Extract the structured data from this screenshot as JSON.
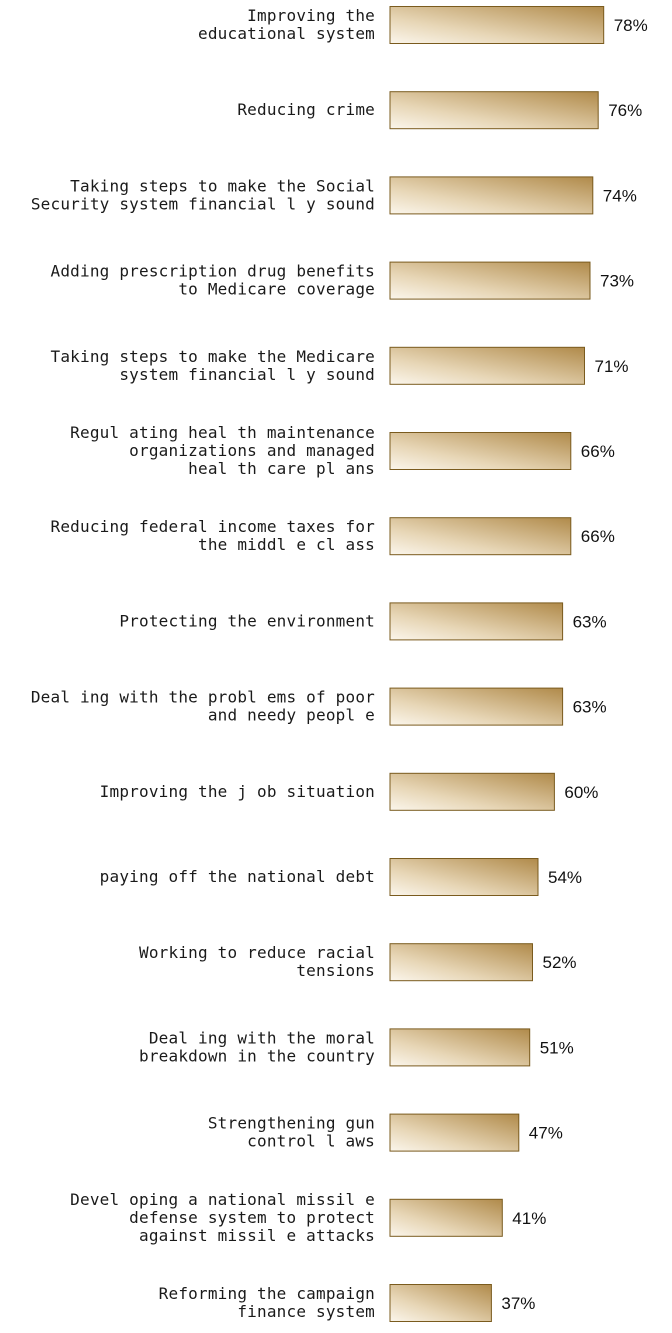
{
  "chart_data": {
    "type": "bar",
    "orientation": "horizontal",
    "categories": [
      [
        "Improving the",
        "educational system"
      ],
      [
        "Reducing crime"
      ],
      [
        "Taking steps to make the Social",
        "Security system financial l y sound"
      ],
      [
        "Adding prescription drug benefits",
        "to Medicare coverage"
      ],
      [
        "Taking steps to make the Medicare",
        "system financial l y sound"
      ],
      [
        "Regul ating heal th maintenance",
        "organizations and managed",
        "heal th care pl ans"
      ],
      [
        "Reducing federal income taxes for",
        "the middl e cl ass"
      ],
      [
        "Protecting the environment"
      ],
      [
        "Deal ing with the probl ems of poor",
        "and needy peopl e"
      ],
      [
        "Improving the j ob situation"
      ],
      [
        "paying off the national debt"
      ],
      [
        "Working to reduce racial",
        "tensions"
      ],
      [
        "Deal ing with the moral",
        "breakdown in the country"
      ],
      [
        "Strengthening gun",
        "control l aws"
      ],
      [
        "Devel oping a national missil e",
        "defense system to protect",
        "against missil e attacks"
      ],
      [
        "Reforming the campaign",
        "finance system"
      ]
    ],
    "values": [
      78,
      76,
      74,
      73,
      71,
      66,
      66,
      63,
      63,
      60,
      54,
      52,
      51,
      47,
      41,
      37
    ],
    "value_labels": [
      "78%",
      "76%",
      "74%",
      "73%",
      "71%",
      "66%",
      "66%",
      "63%",
      "63%",
      "60%",
      "54%",
      "52%",
      "51%",
      "47%",
      "41%",
      "37%"
    ],
    "unit": "%",
    "xlim": [
      0,
      100
    ],
    "grid": false,
    "legend": "none",
    "colors": {
      "bar_light": "#fbf6ec",
      "bar_dark": "#b08a4a",
      "bar_border": "#7a5b1e"
    }
  }
}
